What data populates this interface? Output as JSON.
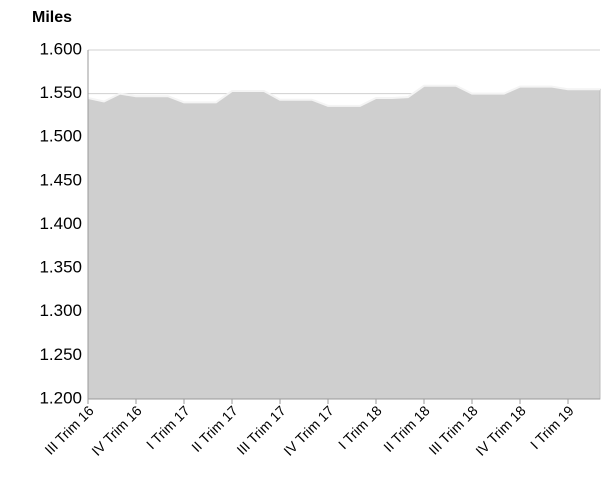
{
  "chart_data": {
    "type": "area",
    "y_label": "Miles",
    "categories": [
      "III Trim 16",
      null,
      null,
      "IV Trim 16",
      null,
      null,
      "I Trim 17",
      null,
      null,
      "II Trim 17",
      null,
      null,
      "III Trim 17",
      null,
      null,
      "IV Trim 17",
      null,
      null,
      "I Trim 18",
      null,
      null,
      "II Trim 18",
      null,
      null,
      "III  Trim 18",
      null,
      null,
      "IV Trim 18",
      null,
      null,
      "I Trim 19",
      null,
      null
    ],
    "values": [
      1545,
      1541,
      1550,
      1547,
      1547,
      1547,
      1540,
      1540,
      1540,
      1553,
      1553,
      1553,
      1543,
      1543,
      1543,
      1536,
      1536,
      1536,
      1545,
      1545,
      1546,
      1559,
      1559,
      1559,
      1550,
      1550,
      1550,
      1558,
      1558,
      1558,
      1555,
      1555,
      1555
    ],
    "color": "#cfcfcf",
    "ylim": [
      1200,
      1600
    ],
    "yticks": [
      {
        "value": 1200,
        "label": "1.200"
      },
      {
        "value": 1250,
        "label": "1.250"
      },
      {
        "value": 1300,
        "label": "1.300"
      },
      {
        "value": 1350,
        "label": "1.350"
      },
      {
        "value": 1400,
        "label": "1.400"
      },
      {
        "value": 1450,
        "label": "1.450"
      },
      {
        "value": 1500,
        "label": "1.500"
      },
      {
        "value": 1550,
        "label": "1.550"
      },
      {
        "value": 1600,
        "label": "1.600"
      }
    ],
    "grid": true
  }
}
